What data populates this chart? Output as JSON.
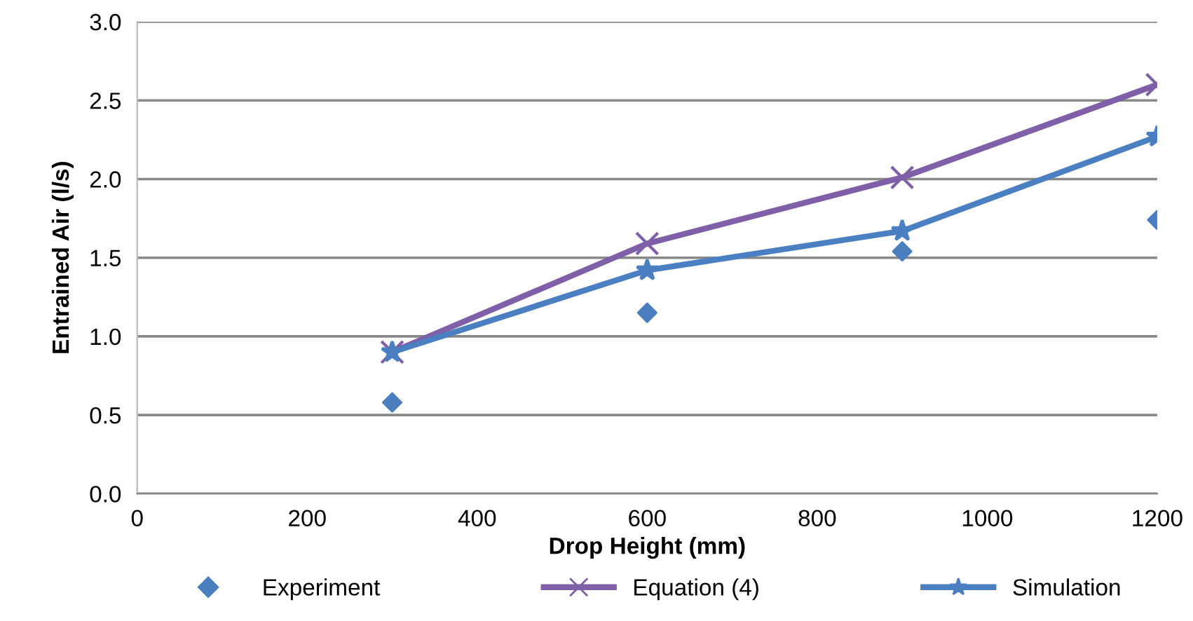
{
  "chart_data": {
    "type": "line",
    "xlabel": "Drop Height (mm)",
    "ylabel": "Entrained Air (l/s)",
    "xlim": [
      0,
      1200
    ],
    "xticks": [
      0,
      200,
      400,
      600,
      800,
      1000,
      1200
    ],
    "ylim": [
      0,
      3.0
    ],
    "yticks": [
      {
        "value": 0,
        "label": "0.0"
      },
      {
        "value": 0.5,
        "label": "0.5"
      },
      {
        "value": 1.0,
        "label": "1.0"
      },
      {
        "value": 1.5,
        "label": "1.5"
      },
      {
        "value": 2.0,
        "label": "2.0"
      },
      {
        "value": 2.5,
        "label": "2.5"
      },
      {
        "value": 3.0,
        "label": "3.0"
      }
    ],
    "grid": "y",
    "legend": "bottom",
    "x": [
      300,
      600,
      900,
      1200
    ],
    "series": [
      {
        "name": "Experiment",
        "type": "scatter",
        "marker": "diamond",
        "color": "#4a7ebf",
        "values": [
          0.58,
          1.15,
          1.54,
          1.74
        ]
      },
      {
        "name": "Equation (4)",
        "marker": "cross",
        "color": "#7f5fa8",
        "values": [
          0.9,
          1.59,
          2.01,
          2.6
        ]
      },
      {
        "name": "Simulation",
        "marker": "star",
        "color": "#4a7fc1",
        "values": [
          0.9,
          1.42,
          1.67,
          2.27
        ]
      }
    ]
  }
}
